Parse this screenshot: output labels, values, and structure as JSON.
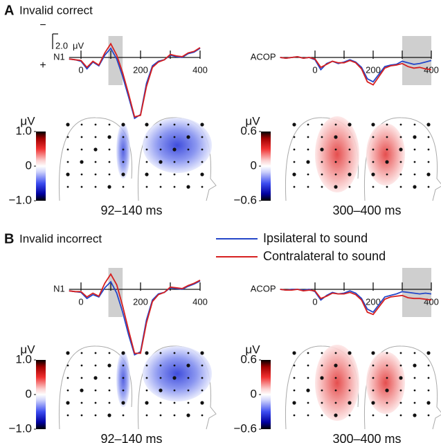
{
  "chart_data": [
    {
      "type": "line",
      "panel": "A",
      "title": "Invalid correct",
      "ylabel": "N1",
      "scale_bar": {
        "value": 2.0,
        "label": "2.0",
        "unit": "μV"
      },
      "polarity": [
        "−",
        "+"
      ],
      "invert_y": true,
      "xlim": [
        -40,
        400
      ],
      "ylim": [
        -4,
        10
      ],
      "xticks": [
        0,
        200,
        400
      ],
      "minor_xticks": [
        100,
        300
      ],
      "window": [
        92,
        140
      ],
      "window_label": "92–140 ms",
      "colorbar": {
        "unit": "μV",
        "lim": [
          -1,
          1
        ],
        "ticks": [
          {
            "value": 1,
            "label": "1.0"
          },
          0,
          {
            "value": -1,
            "label": "−1.0"
          }
        ]
      },
      "x": [
        -40,
        -20,
        0,
        20,
        40,
        60,
        80,
        100,
        120,
        140,
        160,
        180,
        200,
        220,
        240,
        260,
        280,
        300,
        320,
        340,
        360,
        380,
        400
      ],
      "series": [
        {
          "name": "Ipsilateral to sound",
          "color": "#2346c8",
          "values": [
            0.2,
            0.3,
            0.5,
            1.5,
            0.6,
            1.1,
            -0.3,
            -1.2,
            0.2,
            2.5,
            5.2,
            8.0,
            7.5,
            3.4,
            1.1,
            0.5,
            0.3,
            -0.3,
            -0.1,
            0,
            -0.5,
            -0.7,
            -1.2
          ]
        },
        {
          "name": "Contralateral to sound",
          "color": "#d62020",
          "values": [
            0.2,
            0.3,
            0.4,
            1.3,
            0.5,
            1.0,
            -0.6,
            -1.8,
            -0.3,
            2.0,
            4.8,
            7.8,
            7.6,
            3.8,
            1.3,
            0.6,
            0.3,
            -0.4,
            -0.2,
            -0.1,
            -0.6,
            -0.8,
            -1.3
          ]
        }
      ]
    },
    {
      "type": "line",
      "ylabel": "ACOP",
      "invert_y": true,
      "xlim": [
        -120,
        400
      ],
      "ylim": [
        -3,
        4
      ],
      "xticks": [
        0,
        200,
        400
      ],
      "minor_xticks": [
        100,
        300
      ],
      "window": [
        300,
        400
      ],
      "window_label": "300–400 ms",
      "colorbar": {
        "unit": "μV",
        "lim": [
          -0.6,
          0.6
        ],
        "ticks": [
          {
            "value": 0.6,
            "label": "0.6"
          },
          0,
          {
            "value": -0.6,
            "label": "−0.6"
          }
        ]
      },
      "x": [
        -120,
        -100,
        -80,
        -60,
        -40,
        -20,
        0,
        20,
        40,
        60,
        80,
        100,
        120,
        140,
        160,
        180,
        200,
        220,
        240,
        260,
        280,
        300,
        320,
        340,
        360,
        380,
        400
      ],
      "series": [
        {
          "color": "#2346c8",
          "values": [
            0,
            0.1,
            0,
            -0.1,
            0.1,
            0,
            0.3,
            1.6,
            0.8,
            0.5,
            0.8,
            0.6,
            0.3,
            0.6,
            1.3,
            2.8,
            3.2,
            2.2,
            1.2,
            1.0,
            0.9,
            0.5,
            0.7,
            0.9,
            0.8,
            0.6,
            0.4
          ]
        },
        {
          "color": "#d62020",
          "values": [
            0,
            0.1,
            0,
            -0.1,
            0.1,
            0,
            0.2,
            1.3,
            0.9,
            0.5,
            0.7,
            0.7,
            0.4,
            0.7,
            1.5,
            3.2,
            3.6,
            2.5,
            1.4,
            1.1,
            1.0,
            0.8,
            1.2,
            1.4,
            1.3,
            1.5,
            1.6
          ]
        }
      ]
    },
    {
      "type": "line",
      "panel": "B",
      "title": "Invalid incorrect",
      "ylabel": "N1",
      "invert_y": true,
      "xlim": [
        -40,
        400
      ],
      "ylim": [
        -4,
        10
      ],
      "xticks": [
        0,
        200,
        400
      ],
      "minor_xticks": [
        100,
        300
      ],
      "window": [
        92,
        140
      ],
      "window_label": "92–140 ms",
      "colorbar": {
        "unit": "μV",
        "lim": [
          -1,
          1
        ],
        "ticks": [
          {
            "value": 1,
            "label": "1.0"
          },
          0,
          {
            "value": -1,
            "label": "−1.0"
          }
        ]
      },
      "x": [
        -40,
        -20,
        0,
        20,
        40,
        60,
        80,
        100,
        120,
        140,
        160,
        180,
        200,
        220,
        240,
        260,
        280,
        300,
        320,
        340,
        360,
        380,
        400
      ],
      "series": [
        {
          "color": "#2346c8",
          "values": [
            0.2,
            0.3,
            0.4,
            1.2,
            0.7,
            1.0,
            -0.2,
            -1.0,
            0.5,
            3.0,
            6.0,
            8.6,
            8.2,
            4.0,
            1.4,
            0.6,
            0.4,
            -0.2,
            -0.1,
            0,
            -0.4,
            -0.7,
            -1.1
          ]
        },
        {
          "color": "#d62020",
          "values": [
            0.2,
            0.3,
            0.3,
            1.0,
            0.5,
            0.9,
            -0.8,
            -2.0,
            -0.6,
            2.2,
            5.4,
            8.4,
            8.4,
            4.4,
            1.6,
            0.7,
            0.4,
            -0.3,
            -0.2,
            -0.1,
            -0.5,
            -0.8,
            -1.2
          ]
        }
      ]
    },
    {
      "type": "line",
      "ylabel": "ACOP",
      "invert_y": true,
      "xlim": [
        -120,
        400
      ],
      "ylim": [
        -3,
        4
      ],
      "xticks": [
        0,
        200,
        400
      ],
      "minor_xticks": [
        100,
        300
      ],
      "window": [
        300,
        400
      ],
      "window_label": "300–400 ms",
      "colorbar": {
        "unit": "μV",
        "lim": [
          -0.6,
          0.6
        ],
        "ticks": [
          {
            "value": 0.6,
            "label": "0.6"
          },
          0,
          {
            "value": -0.6,
            "label": "−0.6"
          }
        ]
      },
      "x": [
        -120,
        -100,
        -80,
        -60,
        -40,
        -20,
        0,
        20,
        40,
        60,
        80,
        100,
        120,
        140,
        160,
        180,
        200,
        220,
        240,
        260,
        280,
        300,
        320,
        340,
        360,
        380,
        400
      ],
      "series": [
        {
          "color": "#2346c8",
          "values": [
            0,
            0.1,
            0,
            0,
            0.1,
            0,
            0.3,
            1.4,
            0.8,
            0.4,
            0.6,
            0.5,
            0.2,
            0.5,
            1.2,
            2.6,
            3.0,
            2.0,
            1.0,
            0.8,
            0.6,
            0.3,
            0.4,
            0.5,
            0.6,
            0.5,
            0.6
          ]
        },
        {
          "color": "#d62020",
          "values": [
            0,
            0.1,
            0.1,
            0,
            0.2,
            0.1,
            0.2,
            1.2,
            0.9,
            0.5,
            0.6,
            0.6,
            0.4,
            0.7,
            1.4,
            3.0,
            3.3,
            2.3,
            1.3,
            1.0,
            0.9,
            0.8,
            1.1,
            1.2,
            1.2,
            1.3,
            1.4
          ]
        }
      ]
    }
  ]
}
